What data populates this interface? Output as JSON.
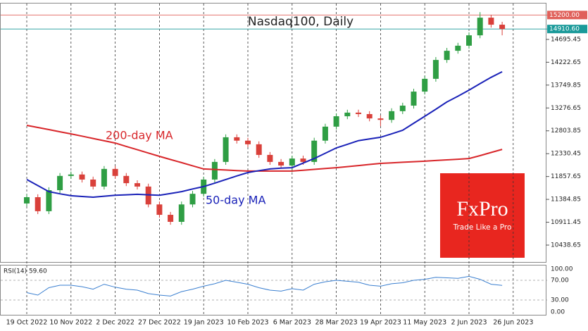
{
  "chart_data": {
    "type": "candlestick",
    "title": "Nasdaq100, Daily",
    "categories": [
      "19 Oct 2022",
      null,
      null,
      null,
      "10 Nov 2022",
      null,
      null,
      null,
      "2 Dec 2022",
      null,
      null,
      null,
      "27 Dec 2022",
      null,
      null,
      null,
      "19 Jan 2023",
      null,
      null,
      null,
      "10 Feb 2023",
      null,
      null,
      null,
      "6 Mar 2023",
      null,
      null,
      null,
      "28 Mar 2023",
      null,
      null,
      null,
      "19 Apr 2023",
      null,
      null,
      null,
      "11 May 2023",
      null,
      null,
      null,
      "2 Jun 2023",
      null,
      null,
      null,
      "26 Jun 2023"
    ],
    "candles": {
      "up_color": "#2f9e44",
      "down_color": "#d9403a",
      "open": [
        11300,
        11430,
        11140,
        11575,
        11870,
        11900,
        11795,
        11650,
        12015,
        11870,
        11720,
        11650,
        11280,
        11065,
        10920,
        11280,
        11500,
        11795,
        12160,
        12670,
        12600,
        12525,
        12305,
        12160,
        12085,
        12230,
        12160,
        12600,
        12890,
        13105,
        13180,
        13150,
        13060,
        13030,
        13210,
        13325,
        13615,
        13880,
        14270,
        14460,
        14565,
        14780,
        15145,
        15000,
        null
      ],
      "high": [
        11490,
        11490,
        11635,
        11930,
        11960,
        11960,
        11855,
        12075,
        12075,
        11930,
        11780,
        11710,
        11340,
        11125,
        11340,
        11560,
        11855,
        12220,
        12730,
        12730,
        12660,
        12585,
        12365,
        12220,
        12290,
        12290,
        12660,
        12950,
        13165,
        13240,
        13240,
        13210,
        13120,
        13270,
        13385,
        13675,
        13940,
        14330,
        14520,
        14625,
        14840,
        15260,
        15205,
        15060,
        null
      ],
      "low": [
        11240,
        11080,
        11080,
        11515,
        11810,
        11735,
        11590,
        11590,
        11810,
        11660,
        11590,
        11220,
        11005,
        10860,
        10860,
        11220,
        11440,
        11735,
        12100,
        12540,
        12465,
        12245,
        12100,
        12025,
        11950,
        12100,
        12100,
        12540,
        12830,
        13045,
        13090,
        13000,
        12900,
        12970,
        13150,
        13265,
        13555,
        13820,
        14210,
        14400,
        14505,
        14720,
        14940,
        14780,
        null
      ],
      "close": [
        11430,
        11140,
        11575,
        11870,
        11900,
        11795,
        11650,
        12015,
        11870,
        11720,
        11650,
        11280,
        11065,
        10920,
        11280,
        11500,
        11795,
        12160,
        12670,
        12600,
        12525,
        12305,
        12160,
        12085,
        12230,
        12160,
        12600,
        12890,
        13105,
        13180,
        13150,
        13060,
        13030,
        13210,
        13325,
        13615,
        13880,
        14270,
        14460,
        14565,
        14780,
        15145,
        15000,
        14910.6,
        null
      ]
    },
    "series": [
      {
        "name": "200-day MA",
        "color": "#d8262a",
        "values": [
          12917,
          12873,
          12829,
          12784,
          12740,
          12693,
          12645,
          12598,
          12550,
          12481,
          12412,
          12344,
          12275,
          12210,
          12145,
          12080,
          12015,
          12004,
          11993,
          11981,
          11970,
          11970,
          11970,
          11970,
          11970,
          11988,
          12005,
          12023,
          12040,
          12063,
          12085,
          12108,
          12130,
          12141,
          12153,
          12164,
          12175,
          12189,
          12203,
          12216,
          12230,
          12290,
          12355,
          12420,
          null
        ]
      },
      {
        "name": "50-day MA",
        "color": "#1a22b8",
        "values": [
          11795,
          11670,
          11545,
          11500,
          11460,
          11445,
          11430,
          11450,
          11470,
          11480,
          11490,
          11480,
          11470,
          11505,
          11545,
          11600,
          11650,
          11720,
          11795,
          11870,
          11940,
          11980,
          12015,
          12030,
          12040,
          12135,
          12230,
          12340,
          12450,
          12525,
          12600,
          12635,
          12670,
          12740,
          12815,
          12960,
          13105,
          13250,
          13400,
          13520,
          13645,
          13780,
          13910,
          14025,
          null
        ]
      }
    ],
    "ylim": [
      10089,
      15438
    ],
    "yticks": [
      10438.65,
      10911.45,
      11384.85,
      11857.65,
      12330.45,
      12803.85,
      13276.65,
      13749.85,
      14222.65,
      14695.45
    ],
    "levels": [
      {
        "value": 15200,
        "label": "15200.00",
        "color": "#e0605a"
      },
      {
        "value": 14910.6,
        "label": "14910.60",
        "color": "#1a9a9a"
      }
    ],
    "rsi": {
      "label": "RSI(14) 59.60",
      "color": "#3a7fd0",
      "values": [
        45,
        40,
        55,
        60,
        60,
        57,
        52,
        62,
        56,
        52,
        50,
        43,
        40,
        38,
        47,
        52,
        58,
        63,
        70,
        66,
        62,
        55,
        50,
        48,
        53,
        50,
        62,
        67,
        70,
        68,
        66,
        60,
        58,
        63,
        65,
        70,
        72,
        76,
        75,
        74,
        78,
        72,
        62,
        59.6,
        null
      ],
      "ylim": [
        0,
        100
      ],
      "yticks": [
        {
          "value": 0,
          "label": "0.00"
        },
        {
          "value": 30,
          "label": "30.00"
        },
        {
          "value": 70,
          "label": "70.00"
        },
        {
          "value": 100,
          "label": "100.00"
        }
      ]
    },
    "logo": {
      "brand": "FxPro",
      "tagline": "Trade Like a Pro"
    }
  }
}
